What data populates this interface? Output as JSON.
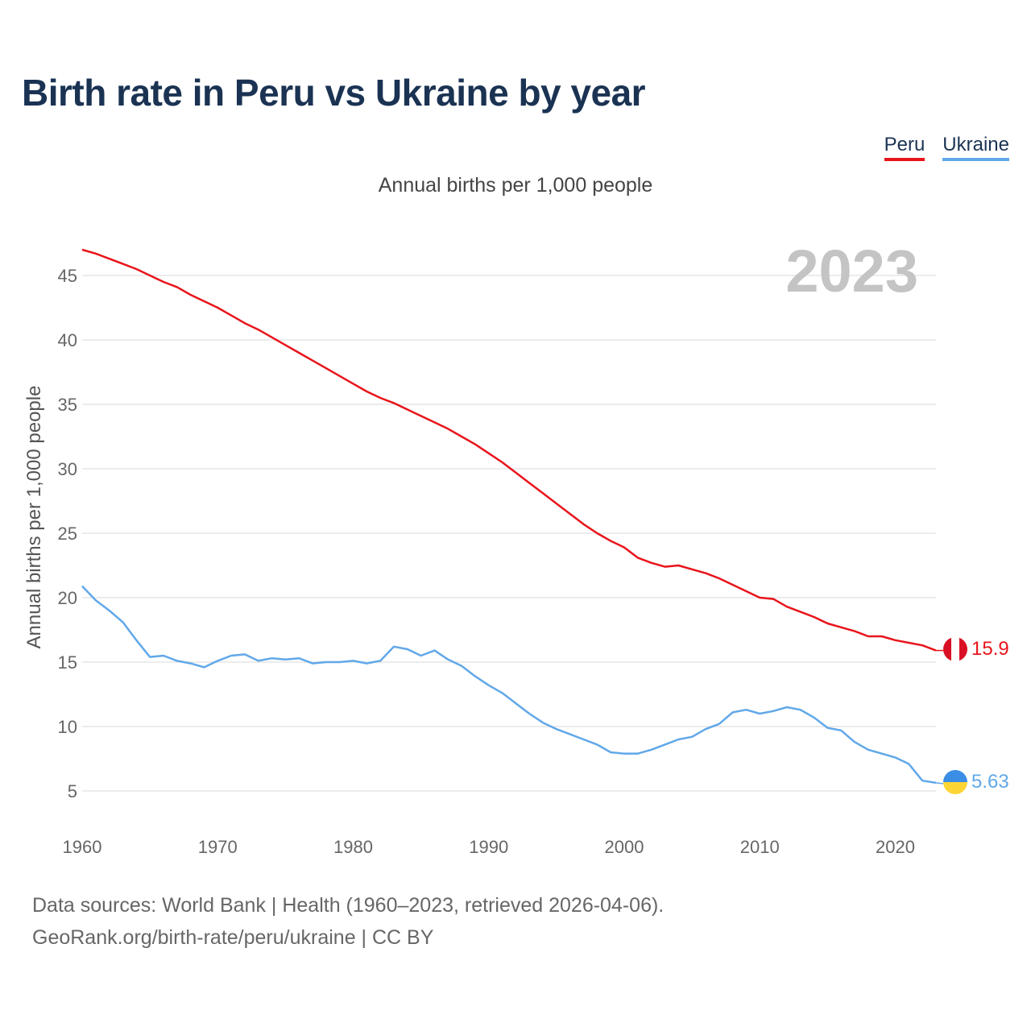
{
  "title": "Birth rate in Peru vs Ukraine by year",
  "subtitle": "Annual births per 1,000 people",
  "legend": [
    {
      "label": "Peru",
      "color": "#e8141b"
    },
    {
      "label": "Ukraine",
      "color": "#61a8e9"
    }
  ],
  "year_watermark": "2023",
  "end_labels": {
    "peru": "15.9",
    "ukraine": "5.63"
  },
  "source": {
    "line1": "Data sources: World Bank | Health (1960–2023, retrieved 2026-04-06).",
    "line2": "GeoRank.org/birth-rate/peru/ukraine | CC BY"
  },
  "chart_data": {
    "type": "line",
    "title": "Birth rate in Peru vs Ukraine by year",
    "xlabel": "",
    "ylabel": "Annual births per 1,000 people",
    "xlim": [
      1960,
      2023
    ],
    "ylim": [
      2,
      49
    ],
    "x_ticks": [
      1960,
      1970,
      1980,
      1990,
      2000,
      2010,
      2020
    ],
    "y_ticks": [
      5,
      10,
      15,
      20,
      25,
      30,
      35,
      40,
      45
    ],
    "grid": true,
    "legend_position": "top-right",
    "x": [
      1960,
      1961,
      1962,
      1963,
      1964,
      1965,
      1966,
      1967,
      1968,
      1969,
      1970,
      1971,
      1972,
      1973,
      1974,
      1975,
      1976,
      1977,
      1978,
      1979,
      1980,
      1981,
      1982,
      1983,
      1984,
      1985,
      1986,
      1987,
      1988,
      1989,
      1990,
      1991,
      1992,
      1993,
      1994,
      1995,
      1996,
      1997,
      1998,
      1999,
      2000,
      2001,
      2002,
      2003,
      2004,
      2005,
      2006,
      2007,
      2008,
      2009,
      2010,
      2011,
      2012,
      2013,
      2014,
      2015,
      2016,
      2017,
      2018,
      2019,
      2020,
      2021,
      2022,
      2023
    ],
    "series": [
      {
        "name": "Peru",
        "color": "#e8141b",
        "values": [
          47.0,
          46.7,
          46.3,
          45.9,
          45.5,
          45.0,
          44.5,
          44.1,
          43.5,
          43.0,
          42.5,
          41.9,
          41.3,
          40.8,
          40.2,
          39.6,
          39.0,
          38.4,
          37.8,
          37.2,
          36.6,
          36.0,
          35.5,
          35.1,
          34.6,
          34.1,
          33.6,
          33.1,
          32.5,
          31.9,
          31.2,
          30.5,
          29.7,
          28.9,
          28.1,
          27.3,
          26.5,
          25.7,
          25.0,
          24.4,
          23.9,
          23.1,
          22.7,
          22.4,
          22.5,
          22.2,
          21.9,
          21.5,
          21.0,
          20.5,
          20.0,
          19.9,
          19.3,
          18.9,
          18.5,
          18.0,
          17.7,
          17.4,
          17.0,
          17.0,
          16.7,
          16.5,
          16.3,
          15.9
        ]
      },
      {
        "name": "Ukraine",
        "color": "#61a8e9",
        "values": [
          20.9,
          19.8,
          19.0,
          18.1,
          16.7,
          15.4,
          15.5,
          15.1,
          14.9,
          14.6,
          15.1,
          15.5,
          15.6,
          15.1,
          15.3,
          15.2,
          15.3,
          14.9,
          15.0,
          15.0,
          15.1,
          14.9,
          15.1,
          16.2,
          16.0,
          15.5,
          15.9,
          15.2,
          14.7,
          13.9,
          13.2,
          12.6,
          11.8,
          11.0,
          10.3,
          9.8,
          9.4,
          9.0,
          8.6,
          8.0,
          7.9,
          7.9,
          8.2,
          8.6,
          9.0,
          9.2,
          9.8,
          10.2,
          11.1,
          11.3,
          11.0,
          11.2,
          11.5,
          11.3,
          10.7,
          9.9,
          9.7,
          8.8,
          8.2,
          7.9,
          7.6,
          7.1,
          5.8,
          5.63
        ]
      }
    ]
  }
}
